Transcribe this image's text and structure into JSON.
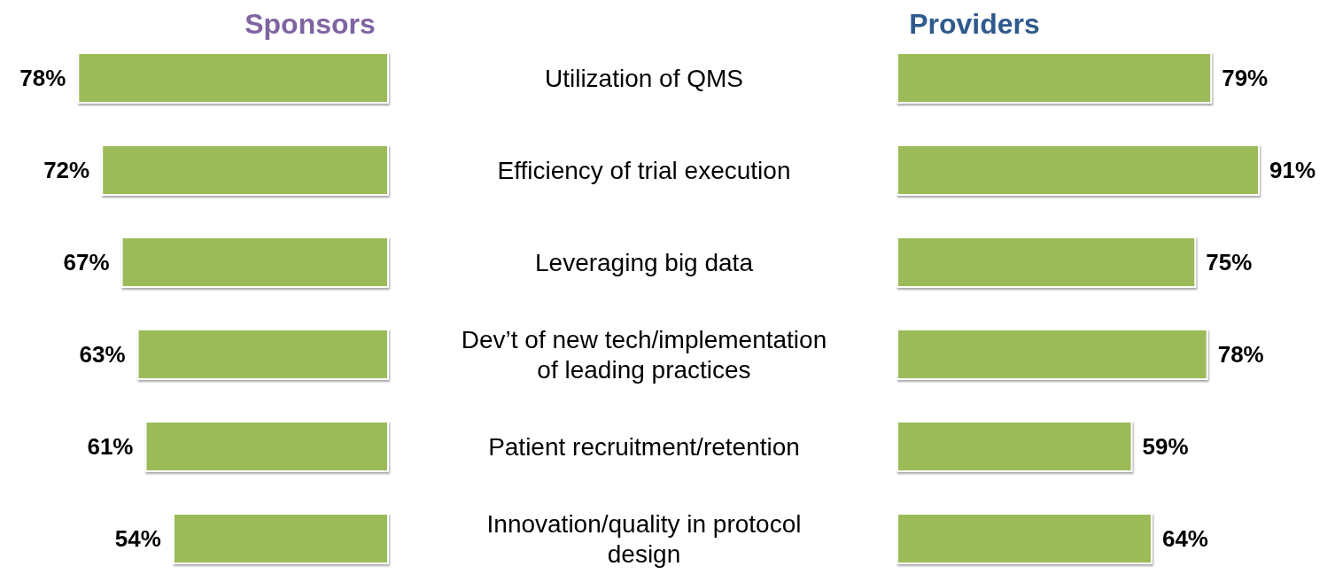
{
  "chart_data": [
    {
      "type": "bar",
      "orientation": "horizontal",
      "title": "Sponsors",
      "categories": [
        "Utilization of QMS",
        "Efficiency of trial execution",
        "Leveraging big data",
        "Dev’t of new tech/implementation of leading practices",
        "Patient recruitment/retention",
        "Innovation/quality in protocol design"
      ],
      "series": [
        {
          "color": "#9bbb59",
          "values": [
            78,
            72,
            67,
            63,
            61,
            54
          ],
          "value_labels": [
            "78%",
            "72%",
            "67%",
            "63%",
            "61%",
            "54%"
          ]
        }
      ]
    },
    {
      "type": "bar",
      "orientation": "horizontal",
      "title": "Providers",
      "categories": [
        null,
        null,
        null,
        null,
        null,
        null
      ],
      "series": [
        {
          "color": "#9bbb59",
          "values": [
            79,
            91,
            75,
            78,
            59,
            64
          ],
          "value_labels": [
            "79%",
            "91%",
            "75%",
            "78%",
            "59%",
            "64%"
          ]
        }
      ]
    }
  ]
}
